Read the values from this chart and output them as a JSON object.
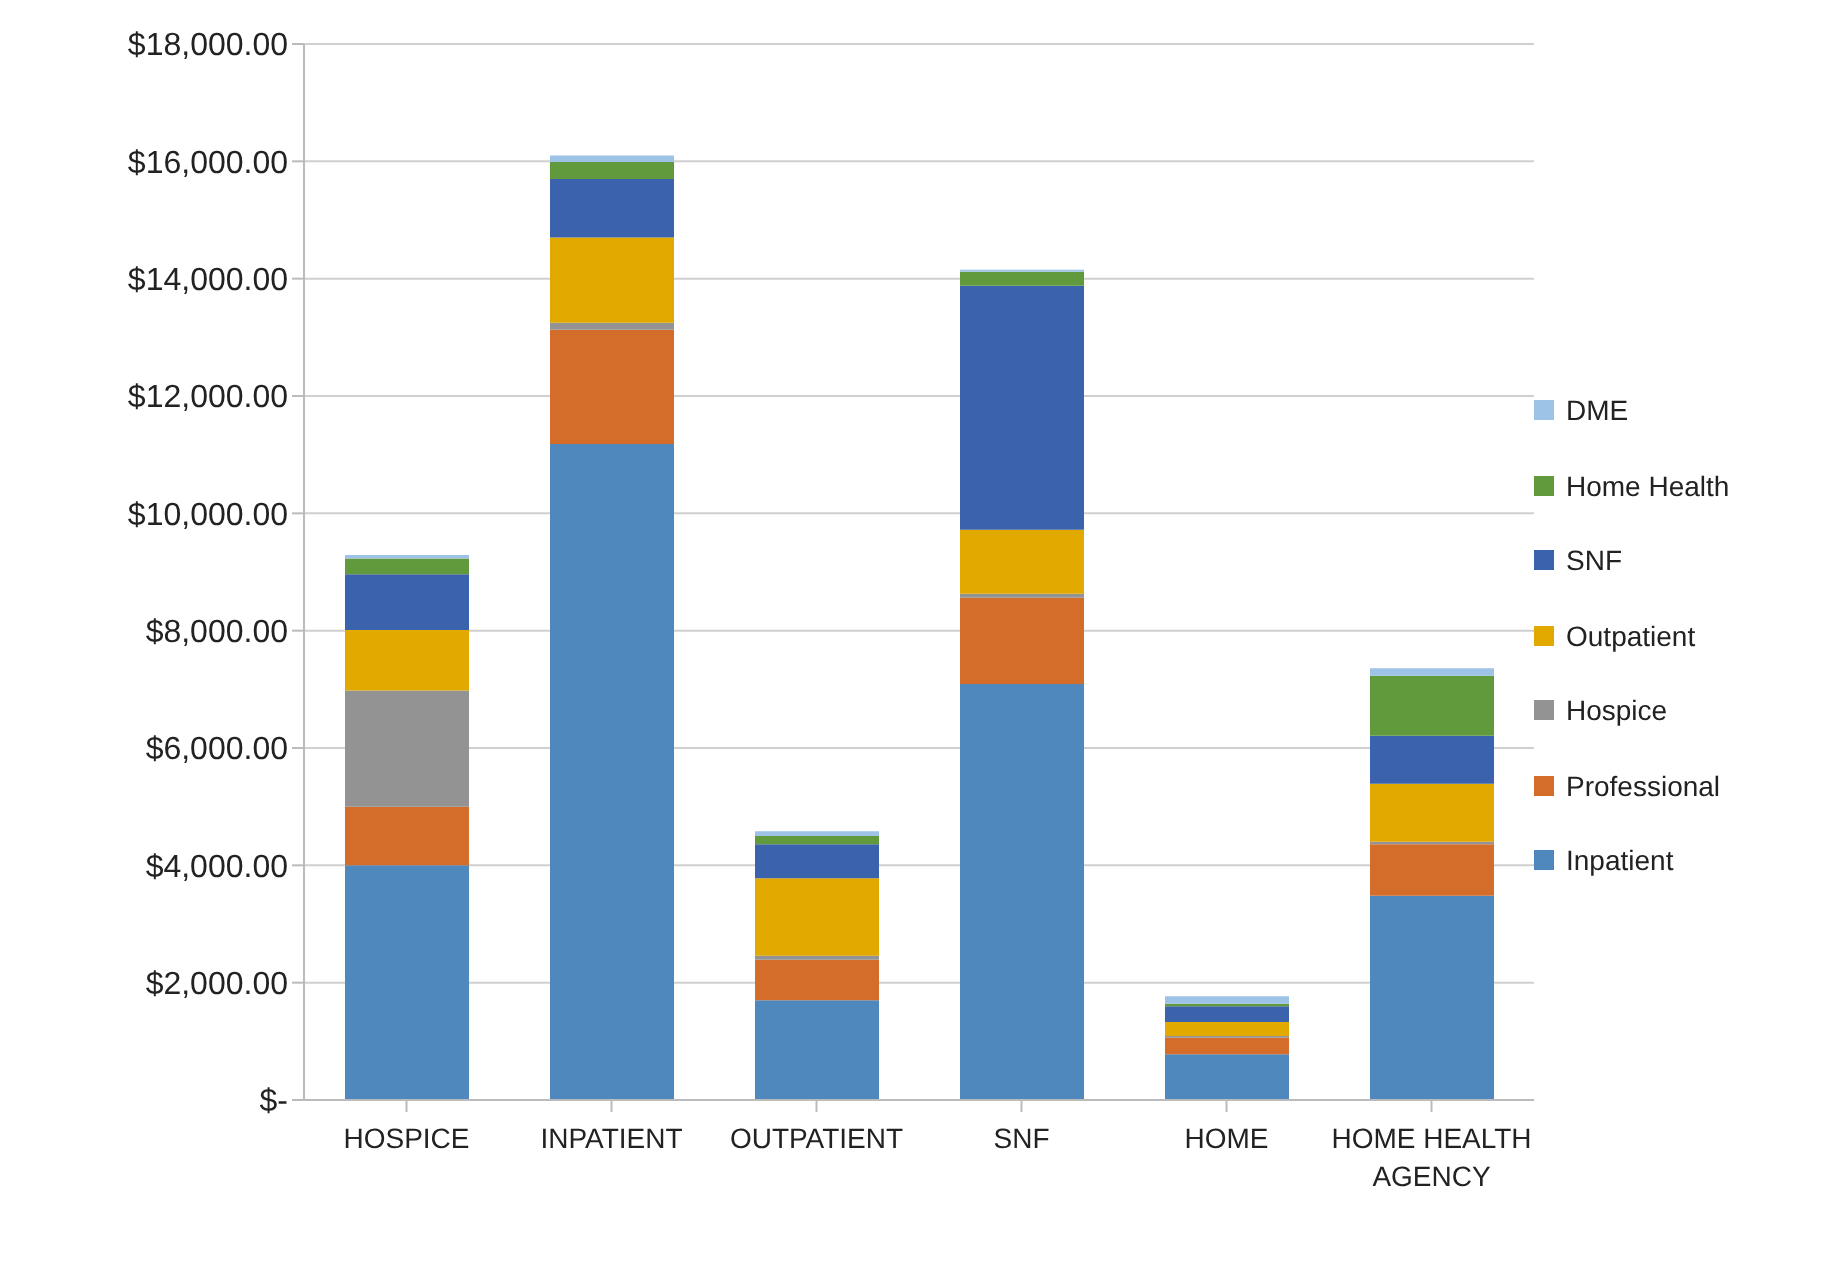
{
  "chart_data": {
    "type": "bar",
    "stacked": true,
    "categories": [
      "HOSPICE",
      "INPATIENT",
      "OUTPATIENT",
      "SNF",
      "HOME",
      "HOME HEALTH AGENCY"
    ],
    "series": [
      {
        "name": "Inpatient",
        "color": "#4f88bd",
        "values": [
          4000,
          11180,
          1700,
          7090,
          780,
          3480
        ]
      },
      {
        "name": "Professional",
        "color": "#d46d29",
        "values": [
          1000,
          1950,
          690,
          1470,
          280,
          880
        ]
      },
      {
        "name": "Hospice",
        "color": "#939393",
        "values": [
          1980,
          120,
          70,
          70,
          30,
          40
        ]
      },
      {
        "name": "Outpatient",
        "color": "#e2a900",
        "values": [
          1030,
          1450,
          1320,
          1090,
          240,
          990
        ]
      },
      {
        "name": "SNF",
        "color": "#3b62ad",
        "values": [
          950,
          1000,
          580,
          4160,
          270,
          820
        ]
      },
      {
        "name": "Home Health",
        "color": "#619a3d",
        "values": [
          270,
          290,
          140,
          240,
          40,
          1020
        ]
      },
      {
        "name": "DME",
        "color": "#9dc3e6",
        "values": [
          60,
          110,
          80,
          30,
          130,
          130
        ]
      }
    ],
    "ylim": [
      0,
      18000
    ],
    "yticks": [
      {
        "value": 0,
        "label": "$-"
      },
      {
        "value": 2000,
        "label": "$2,000.00"
      },
      {
        "value": 4000,
        "label": "$4,000.00"
      },
      {
        "value": 6000,
        "label": "$6,000.00"
      },
      {
        "value": 8000,
        "label": "$8,000.00"
      },
      {
        "value": 10000,
        "label": "$10,000.00"
      },
      {
        "value": 12000,
        "label": "$12,000.00"
      },
      {
        "value": 14000,
        "label": "$14,000.00"
      },
      {
        "value": 16000,
        "label": "$16,000.00"
      },
      {
        "value": 18000,
        "label": "$18,000.00"
      }
    ],
    "grid": "y",
    "legend": "right"
  }
}
